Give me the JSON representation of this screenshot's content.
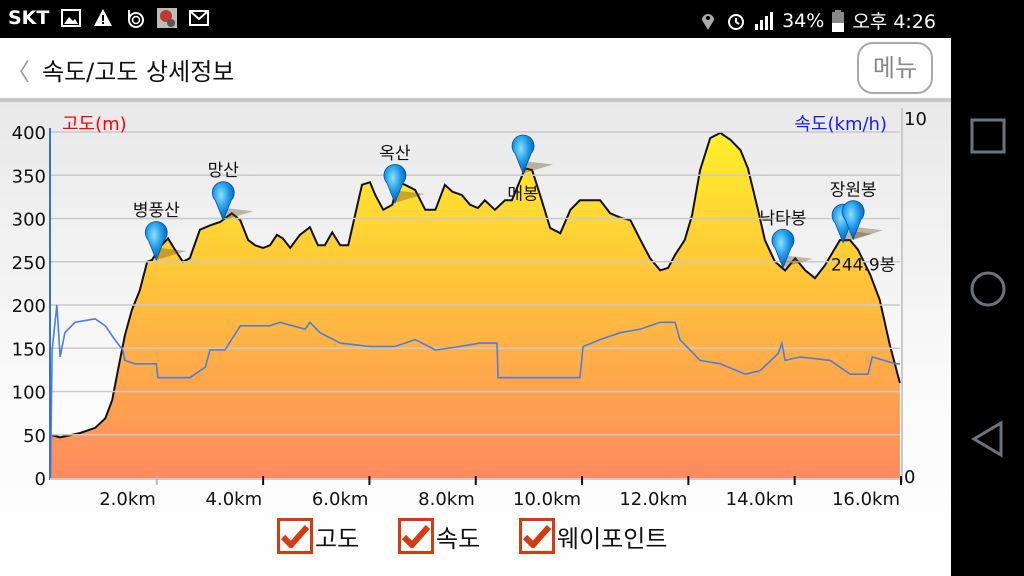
{
  "status_bar": {
    "carrier": "SKT",
    "battery": "34%",
    "time": "오후 4:26",
    "icons": [
      "image-icon",
      "warning-icon",
      "b-app-icon",
      "app-notification-icon",
      "missed-call-icon",
      "location-icon",
      "alarm-icon",
      "signal-icon",
      "battery-icon"
    ]
  },
  "header": {
    "back_icon": "chevron-left-icon",
    "title": "속도/고도 상세정보",
    "menu_label": "메뉴"
  },
  "legend": [
    {
      "label": "고도",
      "checked": true
    },
    {
      "label": "속도",
      "checked": true
    },
    {
      "label": "웨이포인트",
      "checked": true
    }
  ],
  "nav": {
    "icons": [
      "recent-apps-icon",
      "home-icon",
      "back-icon"
    ]
  },
  "colors": {
    "altitude_label": "#ff0000",
    "speed_label": "#1a1aff",
    "speed_line": "#4a7fe0",
    "fill_top": "#fff02a",
    "fill_bottom": "#ff8a60",
    "checkbox": "#d63a10"
  },
  "chart_data": {
    "type": "area",
    "xlabel": "",
    "left_ylabel": "고도(m)",
    "right_ylabel": "속도(km/h)",
    "xlim": [
      0,
      16
    ],
    "ylim_left": [
      0,
      400
    ],
    "ylim_right": [
      0,
      10
    ],
    "x_ticks": [
      2,
      4,
      6,
      8,
      10,
      12,
      14,
      16
    ],
    "x_tick_labels": [
      "2.0km",
      "4.0km",
      "6.0km",
      "8.0km",
      "10.0km",
      "12.0km",
      "14.0km",
      "16.0km"
    ],
    "left_ticks": [
      0,
      50,
      100,
      150,
      200,
      250,
      300,
      350,
      400
    ],
    "left_tick_labels": [
      "0",
      "50",
      "100",
      "150",
      "200",
      "250",
      "300",
      "350",
      "400"
    ],
    "right_ticks": [
      0,
      10
    ],
    "right_tick_labels": [
      "0",
      "10"
    ],
    "grid": true,
    "series": [
      {
        "name": "고도",
        "axis": "left",
        "style": "filled-area",
        "points": [
          [
            0,
            50
          ],
          [
            0.18,
            47
          ],
          [
            0.56,
            52
          ],
          [
            0.84,
            58
          ],
          [
            1.03,
            69
          ],
          [
            1.16,
            90
          ],
          [
            1.27,
            125
          ],
          [
            1.4,
            165
          ],
          [
            1.53,
            194
          ],
          [
            1.68,
            217
          ],
          [
            1.82,
            250
          ],
          [
            1.91,
            252
          ],
          [
            2.06,
            267
          ],
          [
            2.21,
            277
          ],
          [
            2.34,
            264
          ],
          [
            2.49,
            250
          ],
          [
            2.62,
            254
          ],
          [
            2.81,
            287
          ],
          [
            3.0,
            292
          ],
          [
            3.19,
            296
          ],
          [
            3.41,
            306
          ],
          [
            3.57,
            298
          ],
          [
            3.72,
            275
          ],
          [
            3.85,
            269
          ],
          [
            4.0,
            266
          ],
          [
            4.13,
            269
          ],
          [
            4.26,
            281
          ],
          [
            4.37,
            277
          ],
          [
            4.51,
            266
          ],
          [
            4.69,
            281
          ],
          [
            4.88,
            290
          ],
          [
            5.03,
            269
          ],
          [
            5.16,
            269
          ],
          [
            5.3,
            284
          ],
          [
            5.45,
            269
          ],
          [
            5.6,
            269
          ],
          [
            5.73,
            304
          ],
          [
            5.86,
            339
          ],
          [
            6.01,
            342
          ],
          [
            6.11,
            327
          ],
          [
            6.26,
            310
          ],
          [
            6.43,
            316
          ],
          [
            6.54,
            342
          ],
          [
            6.67,
            339
          ],
          [
            6.86,
            333
          ],
          [
            7.05,
            310
          ],
          [
            7.24,
            310
          ],
          [
            7.42,
            339
          ],
          [
            7.56,
            331
          ],
          [
            7.74,
            327
          ],
          [
            7.89,
            316
          ],
          [
            8.04,
            312
          ],
          [
            8.17,
            321
          ],
          [
            8.36,
            310
          ],
          [
            8.55,
            321
          ],
          [
            8.68,
            321
          ],
          [
            8.8,
            339
          ],
          [
            8.93,
            358
          ],
          [
            9.06,
            356
          ],
          [
            9.21,
            327
          ],
          [
            9.4,
            289
          ],
          [
            9.59,
            283
          ],
          [
            9.78,
            310
          ],
          [
            9.96,
            321
          ],
          [
            10.34,
            321
          ],
          [
            10.53,
            306
          ],
          [
            10.72,
            301
          ],
          [
            10.91,
            298
          ],
          [
            11.1,
            275
          ],
          [
            11.28,
            254
          ],
          [
            11.47,
            240
          ],
          [
            11.62,
            243
          ],
          [
            11.75,
            258
          ],
          [
            11.93,
            275
          ],
          [
            12.07,
            304
          ],
          [
            12.22,
            356
          ],
          [
            12.41,
            393
          ],
          [
            12.6,
            399
          ],
          [
            12.79,
            391
          ],
          [
            12.98,
            379
          ],
          [
            13.12,
            358
          ],
          [
            13.31,
            310
          ],
          [
            13.44,
            275
          ],
          [
            13.63,
            250
          ],
          [
            13.82,
            240
          ],
          [
            14.01,
            254
          ],
          [
            14.2,
            240
          ],
          [
            14.38,
            231
          ],
          [
            14.57,
            246
          ],
          [
            14.85,
            275
          ],
          [
            15.04,
            275
          ],
          [
            15.19,
            264
          ],
          [
            15.42,
            235
          ],
          [
            15.6,
            206
          ],
          [
            15.79,
            154
          ],
          [
            15.98,
            110
          ]
        ]
      },
      {
        "name": "속도",
        "axis": "right",
        "style": "line",
        "points": [
          [
            0,
            0
          ],
          [
            0.03,
            3.7
          ],
          [
            0.12,
            5.0
          ],
          [
            0.18,
            3.5
          ],
          [
            0.27,
            4.2
          ],
          [
            0.46,
            4.5
          ],
          [
            0.84,
            4.6
          ],
          [
            1.03,
            4.4
          ],
          [
            1.21,
            4.0
          ],
          [
            1.36,
            3.7
          ],
          [
            1.4,
            3.4
          ],
          [
            1.59,
            3.3
          ],
          [
            1.78,
            3.3
          ],
          [
            1.99,
            3.3
          ],
          [
            2.02,
            2.9
          ],
          [
            2.34,
            2.9
          ],
          [
            2.62,
            2.9
          ],
          [
            2.91,
            3.2
          ],
          [
            3.0,
            3.7
          ],
          [
            3.28,
            3.7
          ],
          [
            3.57,
            4.4
          ],
          [
            4.13,
            4.4
          ],
          [
            4.32,
            4.5
          ],
          [
            4.79,
            4.3
          ],
          [
            4.88,
            4.5
          ],
          [
            5.07,
            4.2
          ],
          [
            5.45,
            3.9
          ],
          [
            6.01,
            3.8
          ],
          [
            6.48,
            3.8
          ],
          [
            6.86,
            4.0
          ],
          [
            7.24,
            3.7
          ],
          [
            7.7,
            3.8
          ],
          [
            8.08,
            3.9
          ],
          [
            8.4,
            3.9
          ],
          [
            8.42,
            2.9
          ],
          [
            8.83,
            2.9
          ],
          [
            9.4,
            2.9
          ],
          [
            9.96,
            2.9
          ],
          [
            10.02,
            3.8
          ],
          [
            10.34,
            4.0
          ],
          [
            10.72,
            4.2
          ],
          [
            11.09,
            4.3
          ],
          [
            11.47,
            4.5
          ],
          [
            11.75,
            4.5
          ],
          [
            11.84,
            4.0
          ],
          [
            12.22,
            3.4
          ],
          [
            12.6,
            3.3
          ],
          [
            13.07,
            3.0
          ],
          [
            13.35,
            3.1
          ],
          [
            13.69,
            3.6
          ],
          [
            13.76,
            3.9
          ],
          [
            13.82,
            3.4
          ],
          [
            14.1,
            3.5
          ],
          [
            14.67,
            3.4
          ],
          [
            15.04,
            3.0
          ],
          [
            15.38,
            3.0
          ],
          [
            15.46,
            3.5
          ],
          [
            15.89,
            3.3
          ],
          [
            15.98,
            3.3
          ]
        ]
      }
    ],
    "waypoints": [
      {
        "name": "병풍산",
        "km": 1.99,
        "alt": 252,
        "label_pos": "above"
      },
      {
        "name": "망산",
        "km": 3.25,
        "alt": 298,
        "label_pos": "above"
      },
      {
        "name": "옥산",
        "km": 6.48,
        "alt": 318,
        "label_pos": "above"
      },
      {
        "name": "매봉",
        "km": 8.89,
        "alt": 352,
        "label_pos": "below"
      },
      {
        "name": "낙타봉",
        "km": 13.78,
        "alt": 243,
        "label_pos": "above"
      },
      {
        "name": "244.9봉",
        "km": 14.91,
        "alt": 272,
        "label_pos": "right"
      },
      {
        "name": "장원봉",
        "km": 15.1,
        "alt": 276,
        "label_pos": "above"
      }
    ]
  }
}
